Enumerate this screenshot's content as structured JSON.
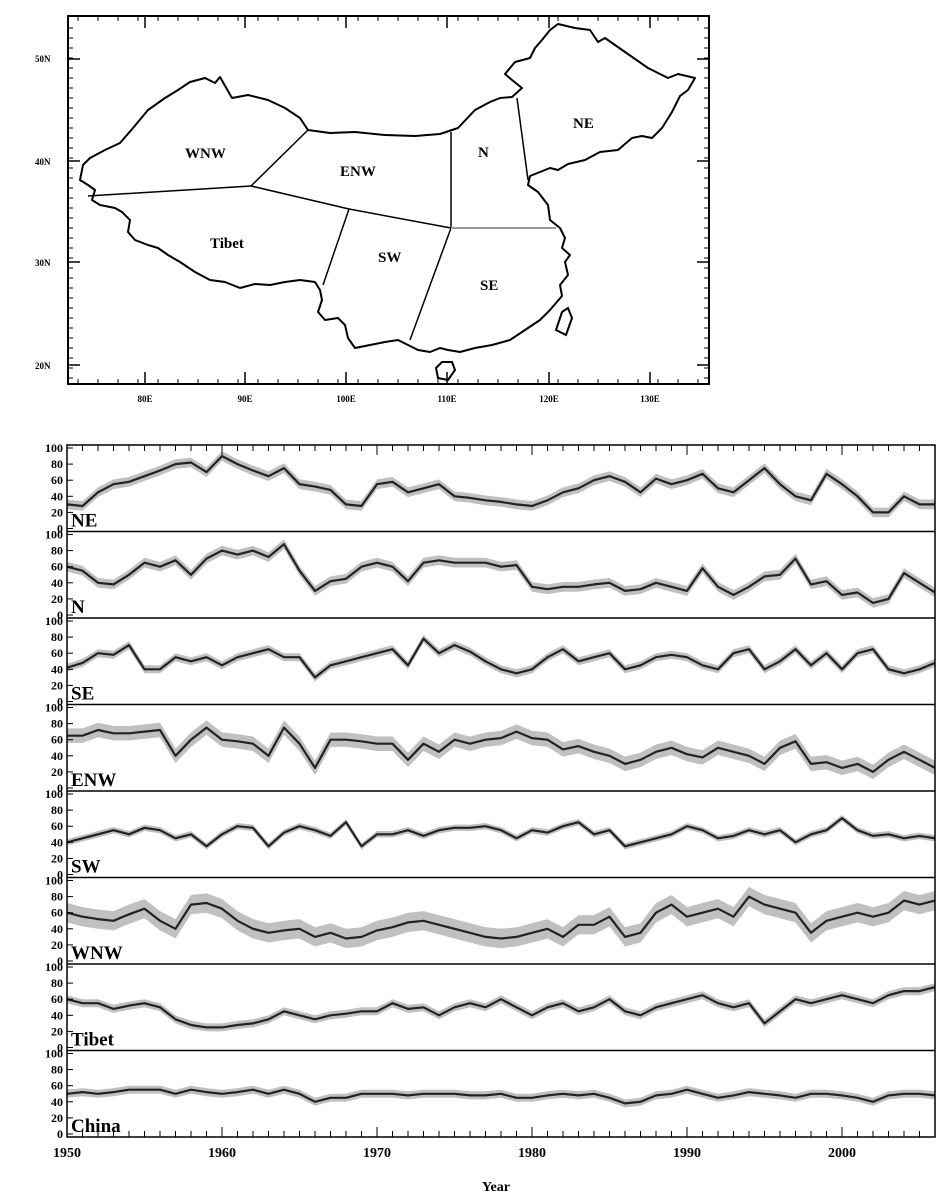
{
  "map": {
    "lat_labels": [
      "50N",
      "40N",
      "30N",
      "20N"
    ],
    "lon_labels": [
      "80E",
      "90E",
      "100E",
      "110E",
      "120E",
      "130E"
    ],
    "regions": [
      "WNW",
      "ENW",
      "N",
      "NE",
      "Tibet",
      "SW",
      "SE"
    ]
  },
  "chart_data": {
    "type": "line",
    "xlabel": "Year",
    "xlim": [
      1950,
      2006
    ],
    "xticks": [
      "1950",
      "1960",
      "1970",
      "1980",
      "1990",
      "2000"
    ],
    "ylim": [
      0,
      100
    ],
    "yticks": [
      "100",
      "80",
      "60",
      "40",
      "20",
      "0"
    ],
    "band_color": "#c0c0c0",
    "line_color": "#222222",
    "years": [
      1950,
      1951,
      1952,
      1953,
      1954,
      1955,
      1956,
      1957,
      1958,
      1959,
      1960,
      1961,
      1962,
      1963,
      1964,
      1965,
      1966,
      1967,
      1968,
      1969,
      1970,
      1971,
      1972,
      1973,
      1974,
      1975,
      1976,
      1977,
      1978,
      1979,
      1980,
      1981,
      1982,
      1983,
      1984,
      1985,
      1986,
      1987,
      1988,
      1989,
      1990,
      1991,
      1992,
      1993,
      1994,
      1995,
      1996,
      1997,
      1998,
      1999,
      2000,
      2001,
      2002,
      2003,
      2004,
      2005,
      2006
    ],
    "series": [
      {
        "name": "NE",
        "band": 6,
        "values": [
          30,
          28,
          45,
          55,
          58,
          65,
          72,
          80,
          82,
          70,
          90,
          80,
          72,
          65,
          75,
          55,
          52,
          48,
          30,
          28,
          55,
          58,
          45,
          50,
          55,
          40,
          38,
          35,
          33,
          30,
          28,
          35,
          45,
          50,
          60,
          65,
          58,
          45,
          62,
          55,
          60,
          68,
          50,
          45,
          60,
          75,
          55,
          40,
          35,
          68,
          55,
          40,
          20,
          20,
          40,
          30,
          30
        ]
      },
      {
        "name": "N",
        "band": 6,
        "values": [
          60,
          55,
          40,
          38,
          50,
          65,
          60,
          68,
          50,
          70,
          80,
          75,
          80,
          72,
          88,
          55,
          30,
          42,
          45,
          60,
          65,
          60,
          42,
          65,
          68,
          65,
          65,
          65,
          60,
          62,
          35,
          32,
          35,
          35,
          38,
          40,
          30,
          32,
          40,
          35,
          30,
          58,
          35,
          25,
          35,
          48,
          50,
          70,
          38,
          42,
          25,
          28,
          15,
          20,
          52,
          40,
          28
        ]
      },
      {
        "name": "SE",
        "band": 5,
        "values": [
          42,
          48,
          60,
          58,
          70,
          40,
          40,
          55,
          50,
          55,
          45,
          55,
          60,
          65,
          55,
          55,
          30,
          45,
          50,
          55,
          60,
          65,
          45,
          78,
          60,
          70,
          62,
          50,
          40,
          35,
          40,
          55,
          65,
          50,
          55,
          60,
          40,
          45,
          55,
          58,
          55,
          45,
          40,
          60,
          65,
          40,
          50,
          65,
          45,
          60,
          40,
          60,
          65,
          40,
          35,
          40,
          48
        ]
      },
      {
        "name": "ENW",
        "band": 9,
        "values": [
          65,
          65,
          72,
          68,
          68,
          70,
          72,
          40,
          60,
          75,
          60,
          58,
          55,
          40,
          75,
          55,
          25,
          60,
          60,
          58,
          55,
          55,
          35,
          55,
          45,
          60,
          55,
          60,
          62,
          70,
          62,
          60,
          48,
          52,
          45,
          40,
          30,
          35,
          45,
          50,
          42,
          38,
          50,
          45,
          40,
          30,
          50,
          58,
          30,
          32,
          25,
          30,
          20,
          35,
          45,
          35,
          25
        ]
      },
      {
        "name": "SW",
        "band": 4,
        "values": [
          40,
          45,
          50,
          55,
          50,
          58,
          55,
          45,
          50,
          35,
          50,
          60,
          58,
          35,
          52,
          60,
          55,
          48,
          65,
          35,
          50,
          50,
          55,
          48,
          55,
          58,
          58,
          60,
          55,
          45,
          55,
          52,
          60,
          65,
          50,
          55,
          35,
          40,
          45,
          50,
          60,
          55,
          45,
          48,
          55,
          50,
          55,
          40,
          50,
          55,
          70,
          55,
          48,
          50,
          45,
          48,
          45
        ]
      },
      {
        "name": "WNW",
        "band": 12,
        "values": [
          60,
          55,
          52,
          50,
          58,
          65,
          50,
          40,
          70,
          72,
          65,
          50,
          40,
          35,
          38,
          40,
          30,
          35,
          28,
          30,
          38,
          42,
          48,
          50,
          45,
          40,
          35,
          30,
          28,
          30,
          35,
          40,
          30,
          45,
          45,
          55,
          30,
          35,
          60,
          70,
          55,
          60,
          65,
          55,
          80,
          70,
          65,
          60,
          35,
          50,
          55,
          60,
          55,
          60,
          75,
          70,
          75
        ]
      },
      {
        "name": "Tibet",
        "band": 5,
        "values": [
          60,
          55,
          55,
          48,
          52,
          55,
          50,
          35,
          28,
          25,
          25,
          28,
          30,
          35,
          45,
          40,
          35,
          40,
          42,
          45,
          45,
          55,
          48,
          50,
          40,
          50,
          55,
          50,
          60,
          50,
          40,
          50,
          55,
          45,
          50,
          60,
          45,
          40,
          50,
          55,
          60,
          65,
          55,
          50,
          55,
          30,
          45,
          60,
          55,
          60,
          65,
          60,
          55,
          65,
          70,
          70,
          75
        ]
      },
      {
        "name": "China",
        "band": 5,
        "values": [
          50,
          52,
          50,
          52,
          55,
          55,
          55,
          50,
          55,
          52,
          50,
          52,
          55,
          50,
          55,
          50,
          40,
          45,
          45,
          50,
          50,
          50,
          48,
          50,
          50,
          50,
          48,
          48,
          50,
          45,
          45,
          48,
          50,
          48,
          50,
          45,
          38,
          40,
          48,
          50,
          55,
          50,
          45,
          48,
          52,
          50,
          48,
          45,
          50,
          50,
          48,
          45,
          40,
          48,
          50,
          50,
          48
        ]
      }
    ]
  }
}
